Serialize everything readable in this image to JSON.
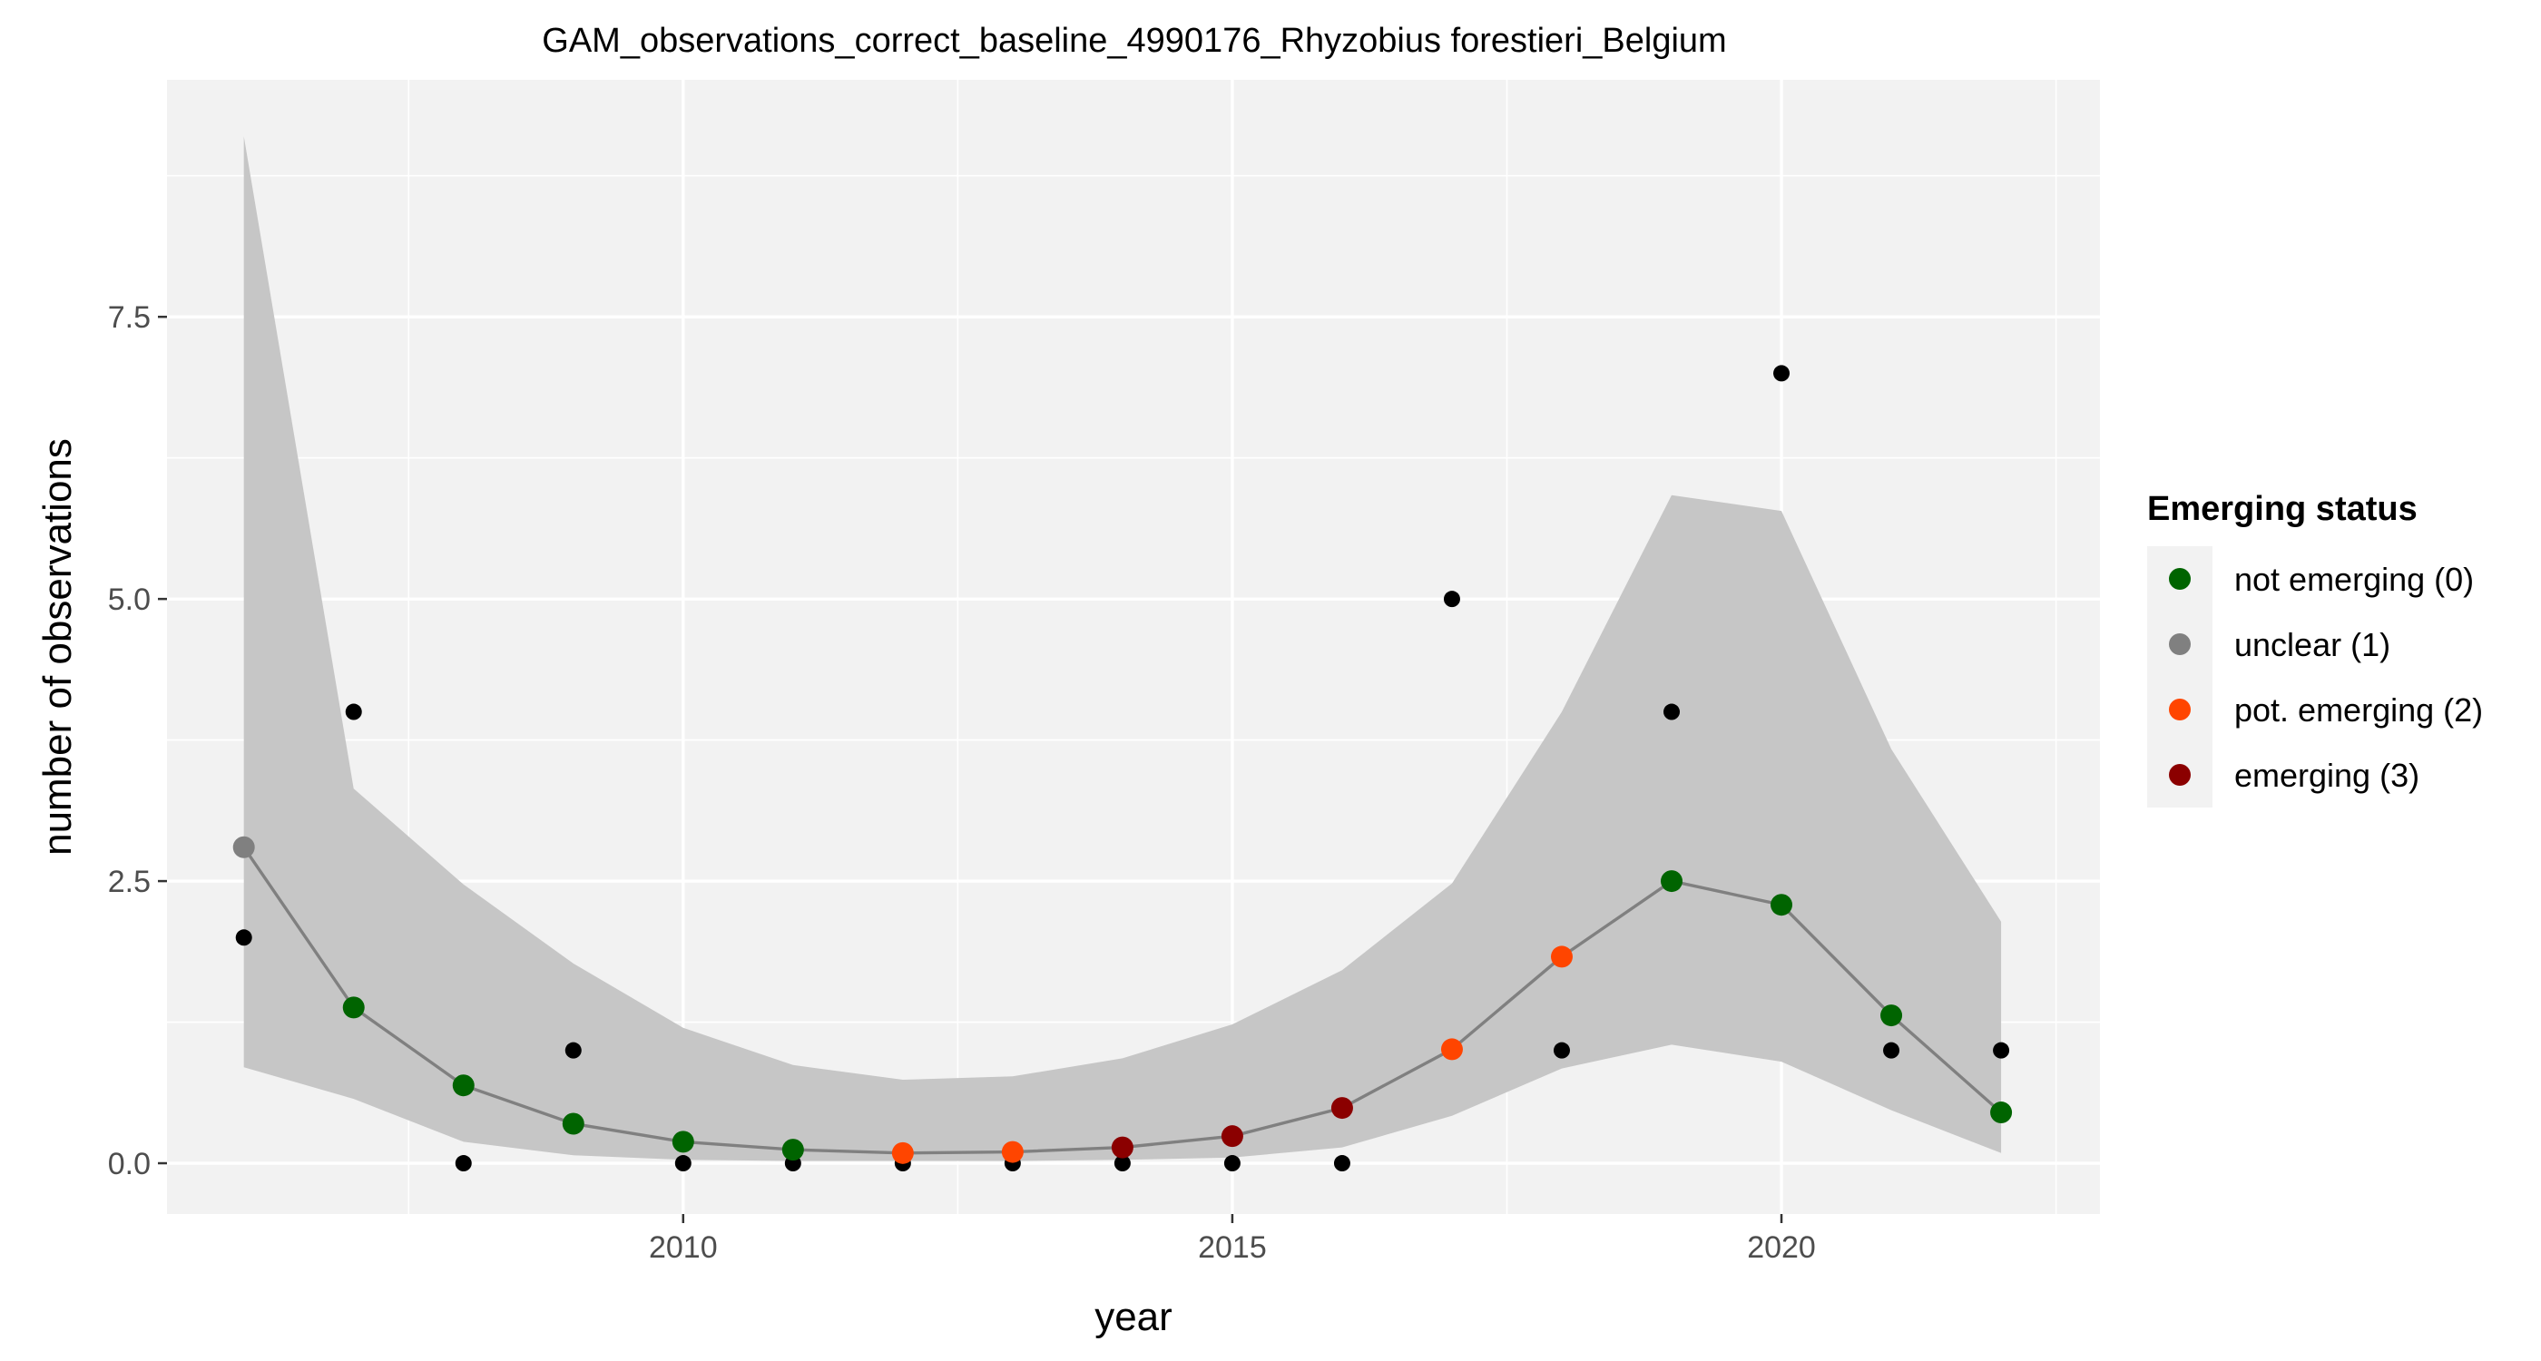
{
  "chart_data": {
    "type": "line",
    "title": "GAM_observations_correct_baseline_4990176_Rhyzobius forestieri_Belgium",
    "xlabel": "year",
    "ylabel": "number of observations",
    "xlim": [
      2005.3,
      2022.9
    ],
    "ylim": [
      -0.45,
      9.6
    ],
    "x_ticks": [
      2010,
      2015,
      2020
    ],
    "x_tick_labels": [
      "2010",
      "2015",
      "2020"
    ],
    "y_ticks": [
      0,
      2.5,
      5,
      7.5
    ],
    "y_tick_labels": [
      "0.0",
      "2.5",
      "5.0",
      "7.5"
    ],
    "grid": true,
    "legend": {
      "title": "Emerging status",
      "position": "right",
      "entries": [
        {
          "label": "not emerging (0)",
          "color": "#006400"
        },
        {
          "label": "unclear (1)",
          "color": "#808080"
        },
        {
          "label": "pot. emerging (2)",
          "color": "#FF4500"
        },
        {
          "label": "emerging (3)",
          "color": "#8B0000"
        }
      ]
    },
    "colors": {
      "panel": "#f2f2f2",
      "ribbon": "#c6c6c6",
      "line": "#808080",
      "observed": "#000000"
    },
    "observed": {
      "x": [
        2006,
        2007,
        2008,
        2009,
        2010,
        2011,
        2012,
        2013,
        2014,
        2015,
        2016,
        2017,
        2018,
        2019,
        2020,
        2021,
        2022
      ],
      "y": [
        2,
        4,
        0,
        1,
        0,
        0,
        0,
        0,
        0,
        0,
        0,
        5,
        1,
        4,
        7,
        1,
        1
      ]
    },
    "fit": {
      "x": [
        2006,
        2007,
        2008,
        2009,
        2010,
        2011,
        2012,
        2013,
        2014,
        2015,
        2016,
        2017,
        2018,
        2019,
        2020,
        2021,
        2022
      ],
      "y": [
        2.8,
        1.38,
        0.69,
        0.35,
        0.19,
        0.12,
        0.09,
        0.1,
        0.14,
        0.24,
        0.49,
        1.01,
        1.83,
        2.5,
        2.29,
        1.31,
        0.45
      ],
      "status": [
        1,
        0,
        0,
        0,
        0,
        0,
        2,
        2,
        3,
        3,
        3,
        2,
        2,
        0,
        0,
        0,
        0
      ]
    },
    "ribbon": {
      "lower": [
        0.85,
        0.57,
        0.19,
        0.07,
        0.03,
        0.02,
        0.02,
        0.02,
        0.03,
        0.05,
        0.14,
        0.42,
        0.84,
        1.05,
        0.9,
        0.47,
        0.09
      ],
      "upper": [
        9.1,
        3.32,
        2.47,
        1.77,
        1.2,
        0.87,
        0.74,
        0.77,
        0.93,
        1.23,
        1.71,
        2.48,
        4.0,
        5.92,
        5.78,
        3.67,
        2.14
      ]
    }
  }
}
